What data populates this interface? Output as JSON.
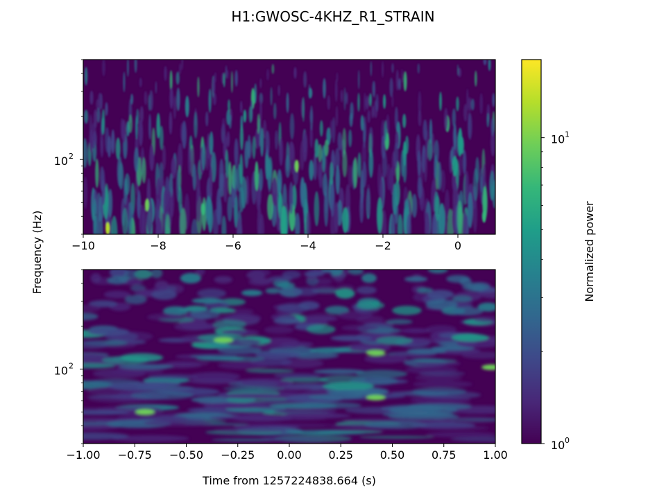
{
  "title": "H1:GWOSC-4KHZ_R1_STRAIN",
  "ylabel": "Frequency (Hz)",
  "xlabel": "Time from 1257224838.664 (s)",
  "colorbar": {
    "label": "Normalized power",
    "scale": "log",
    "range": [
      1,
      18
    ],
    "ticks": [
      {
        "value": 1,
        "base": "10",
        "exp": "0"
      },
      {
        "value": 10,
        "base": "10",
        "exp": "1"
      }
    ],
    "colormap": [
      "#440154",
      "#482878",
      "#3e4989",
      "#31688e",
      "#26828e",
      "#1f9e89",
      "#35b779",
      "#6ece58",
      "#b5de2b",
      "#fde725"
    ]
  },
  "chart_data": [
    {
      "type": "heatmap",
      "name": "spectrogram-top",
      "xlim": [
        -10,
        1
      ],
      "ylim": [
        30,
        500
      ],
      "yscale": "log",
      "xticks": [
        -10,
        -8,
        -6,
        -4,
        -2,
        0
      ],
      "xtick_labels": [
        "−10",
        "−8",
        "−6",
        "−4",
        "−2",
        "0"
      ],
      "ytick_labels": [
        {
          "value": 100,
          "base": "10",
          "exp": "2"
        }
      ],
      "grid": false,
      "features": [
        {
          "t": -9.35,
          "f": 33,
          "power": 12
        },
        {
          "t": -8.3,
          "f": 48,
          "power": 10
        },
        {
          "t": -4.3,
          "f": 90,
          "power": 9
        },
        {
          "t": -6.8,
          "f": 45,
          "power": 8
        },
        {
          "t": 0.7,
          "f": 40,
          "power": 8
        }
      ]
    },
    {
      "type": "heatmap",
      "name": "spectrogram-bottom",
      "xlim": [
        -1,
        1
      ],
      "ylim": [
        30,
        500
      ],
      "yscale": "log",
      "xticks": [
        -1,
        -0.75,
        -0.5,
        -0.25,
        0,
        0.25,
        0.5,
        0.75,
        1
      ],
      "xtick_labels": [
        "−1.00",
        "−0.75",
        "−0.50",
        "−0.25",
        "0.00",
        "0.25",
        "0.50",
        "0.75",
        "1.00"
      ],
      "ytick_labels": [
        {
          "value": 100,
          "base": "10",
          "exp": "2"
        }
      ],
      "grid": false,
      "features": [
        {
          "t": -0.7,
          "f": 50,
          "power": 10
        },
        {
          "t": -0.32,
          "f": 160,
          "power": 10
        },
        {
          "t": 0.42,
          "f": 130,
          "power": 10
        },
        {
          "t": 0.98,
          "f": 103,
          "power": 10
        },
        {
          "t": 0.42,
          "f": 63,
          "power": 9
        }
      ]
    }
  ]
}
